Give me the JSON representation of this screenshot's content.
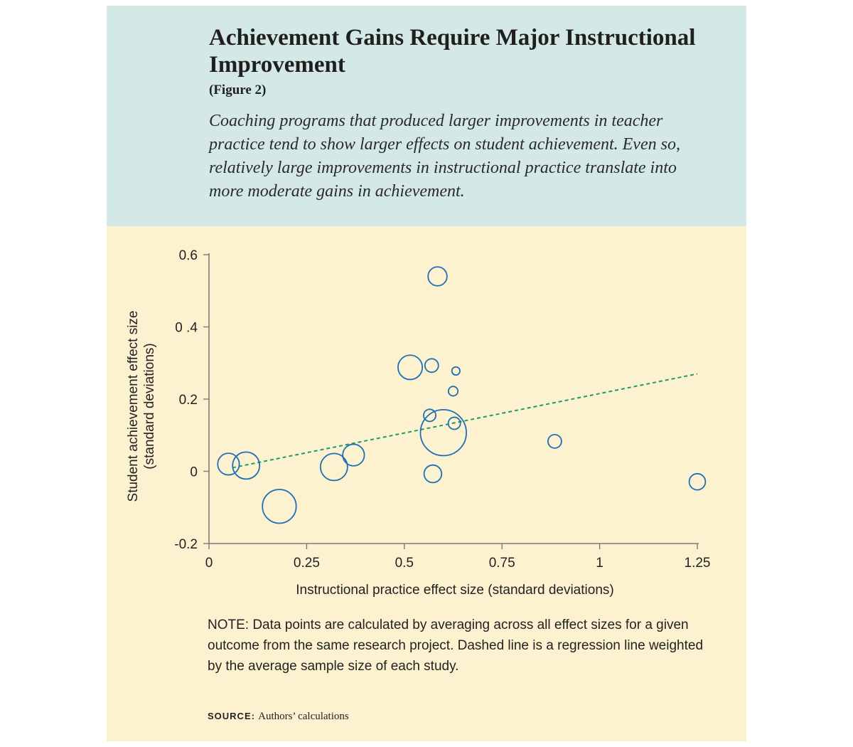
{
  "header": {
    "title": "Achievement Gains Require Major Instructional Improvement",
    "figure_label": "(Figure 2)",
    "subtitle": "Coaching programs that produced larger improvements in teacher practice tend to show larger effects on student achievement. Even so, relatively large improvements in instructional practice translate into more moderate gains in achievement."
  },
  "colors": {
    "header_bg": "#d4e9e6",
    "plot_bg": "#fdf2d0",
    "bubble_stroke": "#1f6fb5",
    "regression_line": "#1f9a6a"
  },
  "chart_data": {
    "type": "scatter",
    "subtype": "bubble",
    "xlabel": "Instructional practice effect size (standard deviations)",
    "ylabel_line1": "Student achievement effect size",
    "ylabel_line2": "(standard deviations)",
    "xlim": [
      0,
      1.25
    ],
    "ylim": [
      -0.2,
      0.6
    ],
    "x_ticks": [
      {
        "value": 0,
        "label": "0"
      },
      {
        "value": 0.25,
        "label": "0.25"
      },
      {
        "value": 0.5,
        "label": "0.5"
      },
      {
        "value": 0.75,
        "label": "0.75"
      },
      {
        "value": 1,
        "label": "1"
      },
      {
        "value": 1.25,
        "label": "1.25"
      }
    ],
    "y_ticks": [
      {
        "value": -0.2,
        "label": "-0.2"
      },
      {
        "value": 0,
        "label": "0"
      },
      {
        "value": 0.2,
        "label": "0.2"
      },
      {
        "value": 0.4,
        "label": "0 .4"
      },
      {
        "value": 0.6,
        "label": "0.6"
      }
    ],
    "grid": false,
    "legend": "none",
    "points": [
      {
        "x": 0.05,
        "y": 0.02,
        "weight": 0.8
      },
      {
        "x": 0.095,
        "y": 0.016,
        "weight": 1.0
      },
      {
        "x": 0.18,
        "y": -0.097,
        "weight": 1.25
      },
      {
        "x": 0.32,
        "y": 0.012,
        "weight": 1.0
      },
      {
        "x": 0.37,
        "y": 0.045,
        "weight": 0.8
      },
      {
        "x": 0.515,
        "y": 0.288,
        "weight": 0.9
      },
      {
        "x": 0.57,
        "y": 0.293,
        "weight": 0.5
      },
      {
        "x": 0.565,
        "y": 0.155,
        "weight": 0.45
      },
      {
        "x": 0.573,
        "y": -0.007,
        "weight": 0.65
      },
      {
        "x": 0.585,
        "y": 0.54,
        "weight": 0.7
      },
      {
        "x": 0.6,
        "y": 0.107,
        "weight": 1.7
      },
      {
        "x": 0.625,
        "y": 0.222,
        "weight": 0.35
      },
      {
        "x": 0.628,
        "y": 0.133,
        "weight": 0.45
      },
      {
        "x": 0.632,
        "y": 0.278,
        "weight": 0.3
      },
      {
        "x": 0.885,
        "y": 0.083,
        "weight": 0.5
      },
      {
        "x": 1.25,
        "y": -0.029,
        "weight": 0.6
      }
    ],
    "regression": {
      "style": "dashed",
      "x1": 0.06,
      "y1": 0.01,
      "x2": 1.25,
      "y2": 0.27
    }
  },
  "note": "NOTE: Data points are calculated by averaging across all effect sizes for a given outcome from the same research project. Dashed line is a regression line weighted by the average sample size of each study.",
  "source": {
    "label": "SOURCE:",
    "text": "Authors’ calculations"
  }
}
